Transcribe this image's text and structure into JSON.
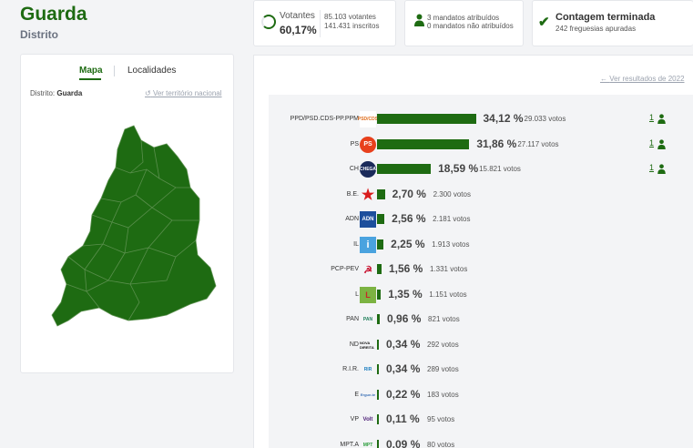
{
  "header": {
    "title": "Guarda",
    "subtitle": "Distrito"
  },
  "votantes": {
    "label": "Votantes",
    "percent": "60,17%",
    "votantes_line": "85.103 votantes",
    "inscritos_line": "141.431 inscritos"
  },
  "mandatos": {
    "atribuidos": "3 mandatos atribuídos",
    "nao_atribuidos": "0 mandatos não atribuídos"
  },
  "contagem": {
    "title": "Contagem terminada",
    "sub": "242 freguesias apuradas"
  },
  "map_card": {
    "tab_map": "Mapa",
    "tab_localidades": "Localidades",
    "distrito_label": "Distrito:",
    "distrito_value": "Guarda",
    "ver_nacional": "Ver território nacional",
    "map_color": "#1e6b12"
  },
  "results": {
    "ver_2022": "Ver resultados de 2022",
    "bar_color": "#1e6b12",
    "parties": [
      {
        "name": "PPD/PSD.CDS-PP.PPM",
        "pct": "34,12 %",
        "pct_value": 34.12,
        "votes": "29.033 votos",
        "seats": "1",
        "logo": "PSD/CDS"
      },
      {
        "name": "PS",
        "pct": "31,86 %",
        "pct_value": 31.86,
        "votes": "27.117 votos",
        "seats": "1",
        "logo": "PS"
      },
      {
        "name": "CH",
        "pct": "18,59 %",
        "pct_value": 18.59,
        "votes": "15.821 votos",
        "seats": "1",
        "logo": "CHEGA"
      },
      {
        "name": "B.E.",
        "pct": "2,70 %",
        "pct_value": 2.7,
        "votes": "2.300 votos",
        "seats": "",
        "logo": "★"
      },
      {
        "name": "ADN",
        "pct": "2,56 %",
        "pct_value": 2.56,
        "votes": "2.181 votos",
        "seats": "",
        "logo": "ADN"
      },
      {
        "name": "IL",
        "pct": "2,25 %",
        "pct_value": 2.25,
        "votes": "1.913 votos",
        "seats": "",
        "logo": "i"
      },
      {
        "name": "PCP-PEV",
        "pct": "1,56 %",
        "pct_value": 1.56,
        "votes": "1.331 votos",
        "seats": "",
        "logo": "☭"
      },
      {
        "name": "L",
        "pct": "1,35 %",
        "pct_value": 1.35,
        "votes": "1.151 votos",
        "seats": "",
        "logo": "L"
      },
      {
        "name": "PAN",
        "pct": "0,96 %",
        "pct_value": 0.96,
        "votes": "821 votos",
        "seats": "",
        "logo": "PAN"
      },
      {
        "name": "ND",
        "pct": "0,34 %",
        "pct_value": 0.34,
        "votes": "292 votos",
        "seats": "",
        "logo": "NOVA DIREITA"
      },
      {
        "name": "R.I.R.",
        "pct": "0,34 %",
        "pct_value": 0.34,
        "votes": "289 votos",
        "seats": "",
        "logo": "RIR"
      },
      {
        "name": "E",
        "pct": "0,22 %",
        "pct_value": 0.22,
        "votes": "183 votos",
        "seats": "",
        "logo": "Ergue-te"
      },
      {
        "name": "VP",
        "pct": "0,11 %",
        "pct_value": 0.11,
        "votes": "95 votos",
        "seats": "",
        "logo": "Volt"
      },
      {
        "name": "MPT.A",
        "pct": "0,09 %",
        "pct_value": 0.09,
        "votes": "80 votos",
        "seats": "",
        "logo": "MPT"
      }
    ]
  }
}
